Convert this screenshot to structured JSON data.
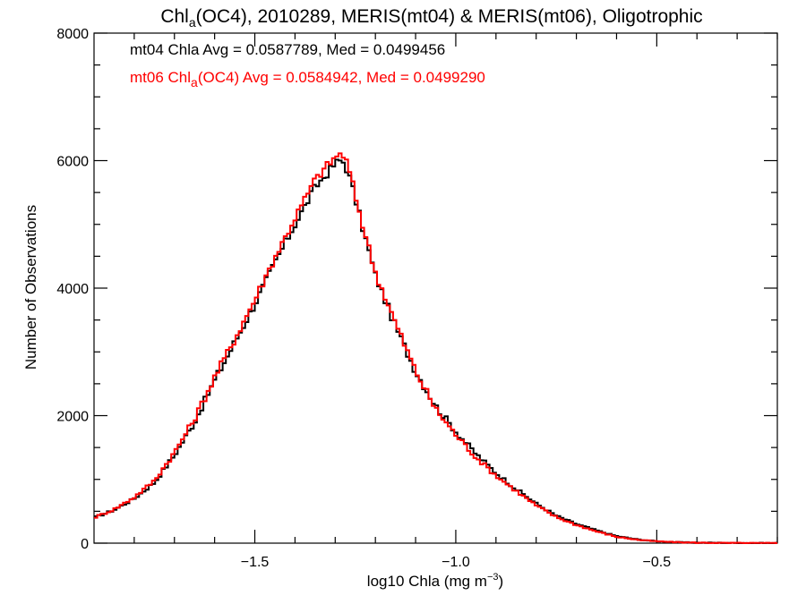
{
  "chart_data": {
    "type": "line",
    "style": "histogram-step",
    "title_main": "Chl",
    "title_sub": "a",
    "title_rest": "(OC4), 2010289, MERIS(mt04) & MERIS(mt06), Oligotrophic",
    "xlabel_main": "log10 Chla (mg m",
    "xlabel_sup": "−3",
    "xlabel_end": ")",
    "ylabel": "Number of Observations",
    "xlim": [
      -1.9,
      -0.2
    ],
    "ylim": [
      0,
      8000
    ],
    "x_ticks": [
      -1.5,
      -1.0,
      -0.5
    ],
    "x_tick_labels": [
      "−1.5",
      "−1.0",
      "−0.5"
    ],
    "y_ticks": [
      0,
      2000,
      4000,
      6000,
      8000
    ],
    "y_tick_labels": [
      "0",
      "2000",
      "4000",
      "6000",
      "8000"
    ],
    "grid": false,
    "legend_position": "top-left",
    "legend": [
      {
        "parts": [
          "mt04 Chla Avg = 0.0587789, Med = 0.0499456"
        ],
        "color": "#000000"
      },
      {
        "parts": [
          "mt06 Chl",
          "a",
          "(OC4) Avg = 0.0584942, Med = 0.0499290"
        ],
        "color": "#ff0000"
      }
    ],
    "bin_width": 0.008,
    "series": [
      {
        "key": "mt04",
        "color": "#000000",
        "x": [
          -1.9,
          -1.85,
          -1.8,
          -1.75,
          -1.7,
          -1.65,
          -1.6,
          -1.55,
          -1.5,
          -1.45,
          -1.4,
          -1.35,
          -1.32,
          -1.3,
          -1.29,
          -1.28,
          -1.27,
          -1.26,
          -1.25,
          -1.23,
          -1.2,
          -1.15,
          -1.1,
          -1.05,
          -1.0,
          -0.95,
          -0.9,
          -0.85,
          -0.8,
          -0.75,
          -0.7,
          -0.65,
          -0.6,
          -0.55,
          -0.5,
          -0.45,
          -0.4,
          -0.3,
          -0.2
        ],
        "y": [
          400,
          520,
          700,
          950,
          1380,
          1900,
          2550,
          3150,
          3750,
          4400,
          5000,
          5580,
          5800,
          5950,
          6000,
          5980,
          5850,
          5650,
          5400,
          4900,
          4200,
          3400,
          2700,
          2150,
          1750,
          1400,
          1100,
          850,
          620,
          430,
          300,
          200,
          110,
          60,
          30,
          15,
          8,
          3,
          1
        ]
      },
      {
        "key": "mt06",
        "color": "#ff0000",
        "x": [
          -1.9,
          -1.85,
          -1.8,
          -1.75,
          -1.7,
          -1.65,
          -1.6,
          -1.55,
          -1.5,
          -1.45,
          -1.4,
          -1.35,
          -1.32,
          -1.3,
          -1.29,
          -1.28,
          -1.27,
          -1.26,
          -1.25,
          -1.23,
          -1.2,
          -1.15,
          -1.1,
          -1.05,
          -1.0,
          -0.95,
          -0.9,
          -0.85,
          -0.8,
          -0.75,
          -0.7,
          -0.65,
          -0.6,
          -0.55,
          -0.5,
          -0.45,
          -0.4,
          -0.3,
          -0.2
        ],
        "y": [
          400,
          530,
          720,
          980,
          1420,
          1950,
          2600,
          3200,
          3820,
          4480,
          5100,
          5700,
          5920,
          6050,
          6100,
          6080,
          5950,
          5720,
          5450,
          4950,
          4250,
          3450,
          2700,
          2100,
          1700,
          1350,
          1060,
          820,
          590,
          410,
          285,
          185,
          100,
          55,
          28,
          14,
          7,
          2,
          1
        ]
      }
    ]
  }
}
